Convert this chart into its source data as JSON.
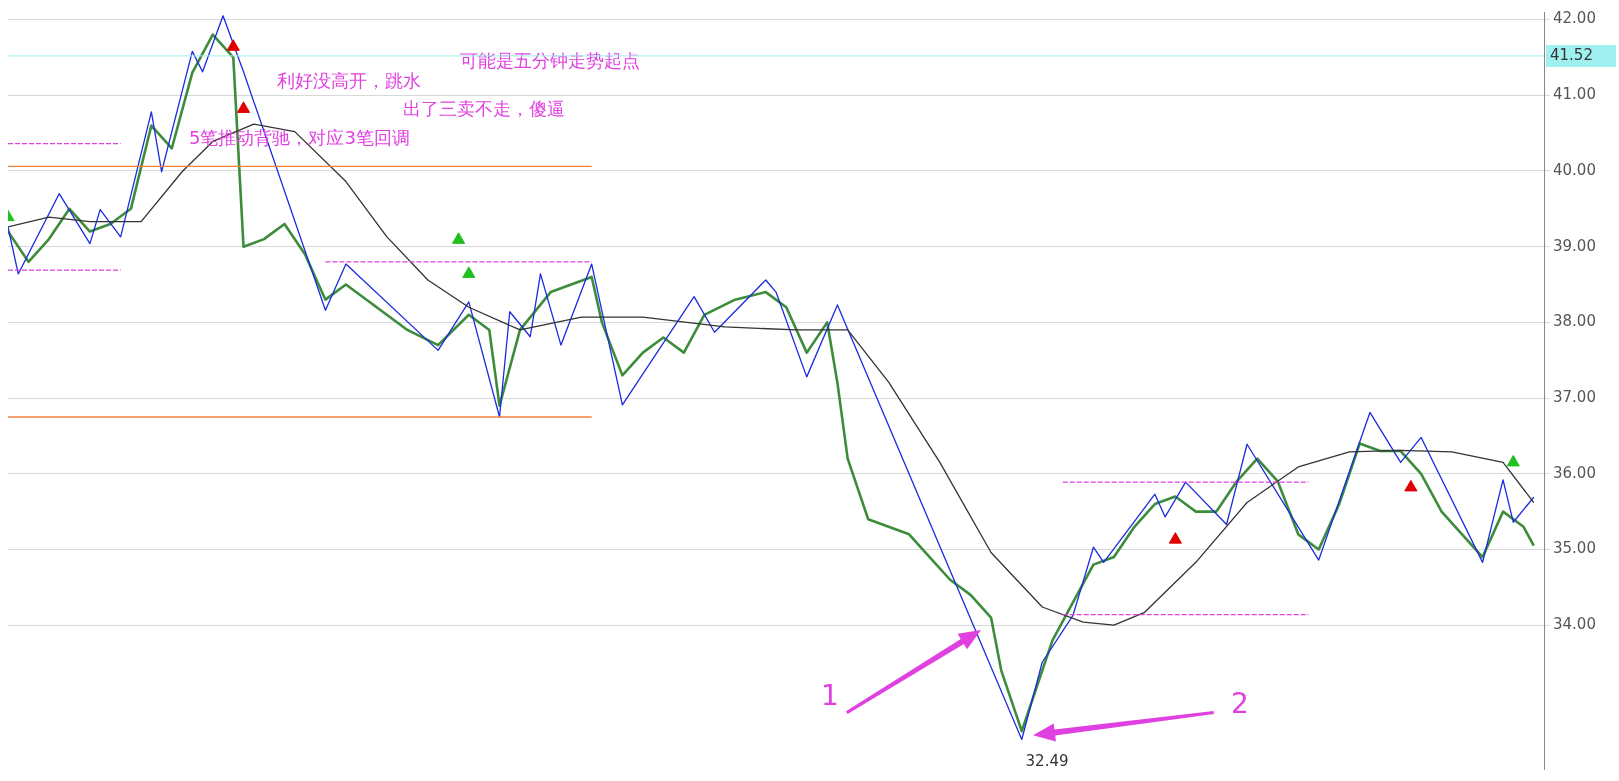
{
  "chart_data": {
    "type": "line",
    "categories": [
      null,
      null,
      null,
      null,
      null,
      null,
      null,
      null,
      null,
      null,
      null,
      null,
      null,
      null,
      null,
      null,
      null,
      null,
      null,
      null,
      null,
      null,
      null,
      null,
      null,
      null,
      null,
      null,
      null,
      null,
      null,
      null,
      null,
      null,
      null,
      null,
      null,
      null,
      null,
      null,
      null,
      null,
      null,
      null,
      null,
      null,
      null,
      null,
      null,
      null,
      null,
      null,
      null,
      null,
      null,
      null,
      null,
      null,
      null,
      null,
      null,
      null,
      null,
      null,
      null,
      null,
      null,
      null,
      null,
      null,
      null,
      null,
      null,
      null,
      null,
      null,
      null,
      null,
      null,
      null,
      null,
      null,
      null,
      null,
      null,
      null,
      null,
      null,
      null,
      null,
      null,
      null,
      null,
      null,
      null,
      null,
      null,
      null,
      null,
      null,
      null,
      null,
      null,
      null,
      null,
      null,
      null,
      null,
      null,
      null,
      null,
      null,
      null,
      null,
      null,
      null,
      null,
      null,
      null,
      null,
      null,
      null,
      null,
      null,
      null,
      null,
      null,
      null,
      null,
      null,
      null,
      null,
      null,
      null,
      null,
      null,
      null,
      null,
      null,
      null,
      null,
      null,
      null,
      null,
      null,
      null,
      null,
      null,
      null,
      null
    ],
    "ylim": [
      32.1,
      42.1
    ],
    "yticks": [
      {
        "value": 34,
        "label": "34.00"
      },
      {
        "value": 35,
        "label": "35.00"
      },
      {
        "value": 36,
        "label": "36.00"
      },
      {
        "value": 37,
        "label": "37.00"
      },
      {
        "value": 38,
        "label": "38.00"
      },
      {
        "value": 39,
        "label": "39.00"
      },
      {
        "value": 40,
        "label": "40.00"
      },
      {
        "value": 41,
        "label": "41.00"
      },
      {
        "value": 42,
        "label": "42.00"
      }
    ],
    "grid": "y",
    "legend": false,
    "tick_labels": "y",
    "series": [
      {
        "color": "#3c8c3c",
        "values": [
          39.2,
          null,
          38.8,
          null,
          39.1,
          null,
          39.5,
          null,
          39.2,
          null,
          39.3,
          null,
          39.5,
          null,
          40.6,
          null,
          40.3,
          null,
          41.3,
          null,
          41.8,
          null,
          41.5,
          39.0,
          null,
          39.1,
          null,
          39.3,
          null,
          38.9,
          null,
          38.3,
          null,
          38.5,
          null,
          null,
          38.2,
          null,
          null,
          37.9,
          null,
          null,
          37.7,
          null,
          null,
          38.1,
          null,
          37.9,
          36.9,
          null,
          37.9,
          null,
          null,
          38.4,
          null,
          38.5,
          null,
          38.6,
          38.0,
          null,
          37.3,
          null,
          37.6,
          null,
          37.8,
          null,
          37.6,
          null,
          38.1,
          null,
          null,
          38.3,
          null,
          null,
          38.4,
          null,
          38.2,
          null,
          37.6,
          null,
          38.0,
          37.2,
          36.2,
          null,
          35.4,
          null,
          35.3,
          null,
          35.2,
          null,
          34.9,
          null,
          34.6,
          null,
          34.4,
          null,
          34.1,
          33.4,
          null,
          32.6,
          33.0,
          null,
          33.8,
          null,
          34.3,
          null,
          34.8,
          null,
          34.9,
          null,
          35.3,
          null,
          35.6,
          null,
          35.7,
          null,
          35.5,
          null,
          35.5,
          null,
          35.9,
          null,
          36.2,
          null,
          35.9,
          null,
          35.2,
          null,
          35.0,
          null,
          35.6,
          null,
          36.4,
          null,
          36.3,
          null,
          36.3,
          null,
          36.0,
          null,
          35.5,
          null,
          35.2,
          null,
          34.9,
          null,
          35.5,
          null,
          35.3,
          35.05
        ]
      },
      {
        "color": "#1a2be0",
        "values": [
          39.26,
          38.64,
          null,
          null,
          null,
          39.7,
          null,
          null,
          39.04,
          39.49,
          null,
          39.13,
          null,
          null,
          40.78,
          39.99,
          null,
          null,
          41.58,
          41.31,
          null,
          42.05,
          null,
          41.31,
          null,
          null,
          null,
          null,
          null,
          null,
          null,
          38.16,
          null,
          38.77,
          null,
          null,
          null,
          null,
          null,
          null,
          null,
          null,
          37.63,
          null,
          null,
          38.27,
          null,
          null,
          36.75,
          38.14,
          null,
          37.81,
          38.64,
          null,
          37.7,
          null,
          null,
          38.77,
          null,
          null,
          36.91,
          null,
          null,
          null,
          null,
          null,
          null,
          38.34,
          null,
          37.87,
          null,
          null,
          null,
          null,
          38.56,
          38.4,
          null,
          null,
          37.28,
          null,
          null,
          38.23,
          null,
          null,
          null,
          null,
          null,
          null,
          null,
          null,
          null,
          null,
          null,
          null,
          null,
          null,
          null,
          null,
          null,
          32.49,
          null,
          33.51,
          null,
          null,
          34.13,
          null,
          35.03,
          34.83,
          null,
          null,
          null,
          null,
          35.73,
          35.43,
          null,
          35.89,
          null,
          null,
          null,
          35.33,
          null,
          36.39,
          null,
          null,
          null,
          null,
          null,
          null,
          34.86,
          null,
          null,
          null,
          null,
          36.81,
          null,
          null,
          36.15,
          null,
          36.48,
          null,
          null,
          null,
          null,
          null,
          34.83,
          null,
          35.92,
          35.36,
          null,
          35.69
        ]
      },
      {
        "color": "#333333",
        "values": [
          39.26,
          null,
          null,
          null,
          39.39,
          null,
          null,
          null,
          39.33,
          null,
          null,
          null,
          null,
          39.33,
          null,
          null,
          null,
          39.99,
          null,
          null,
          40.39,
          null,
          null,
          null,
          40.62,
          null,
          null,
          null,
          40.52,
          null,
          null,
          null,
          null,
          39.86,
          null,
          null,
          null,
          39.13,
          null,
          null,
          null,
          38.56,
          null,
          null,
          null,
          38.2,
          null,
          null,
          null,
          null,
          37.9,
          null,
          null,
          null,
          null,
          null,
          38.07,
          null,
          null,
          null,
          null,
          null,
          38.07,
          null,
          null,
          null,
          null,
          null,
          null,
          null,
          37.94,
          null,
          null,
          null,
          null,
          null,
          null,
          37.9,
          null,
          null,
          null,
          null,
          37.9,
          null,
          null,
          null,
          37.21,
          null,
          null,
          null,
          null,
          36.15,
          null,
          null,
          null,
          null,
          34.96,
          null,
          null,
          null,
          null,
          34.24,
          null,
          null,
          null,
          34.04,
          null,
          null,
          34.0,
          null,
          null,
          34.17,
          null,
          null,
          null,
          null,
          34.83,
          null,
          null,
          null,
          null,
          35.62,
          null,
          null,
          null,
          null,
          36.09,
          null,
          null,
          null,
          null,
          36.29,
          null,
          null,
          null,
          null,
          36.31,
          null,
          null,
          null,
          null,
          36.29,
          null,
          null,
          null,
          null,
          36.15,
          null,
          null,
          35.62
        ]
      },
      {
        "color": "#f08040",
        "line_style": "solid",
        "values": [
          40.06,
          null,
          null,
          null,
          null,
          null,
          null,
          null,
          null,
          null,
          null,
          null,
          null,
          null,
          null,
          null,
          null,
          null,
          null,
          null,
          null,
          null,
          null,
          null,
          null,
          null,
          null,
          null,
          null,
          null,
          null,
          null,
          null,
          null,
          null,
          null,
          null,
          null,
          null,
          null,
          null,
          null,
          null,
          null,
          null,
          null,
          null,
          null,
          null,
          null,
          null,
          null,
          null,
          null,
          null,
          null,
          null,
          40.06,
          null,
          null,
          null,
          null,
          null,
          null,
          null,
          null,
          null,
          null,
          null,
          null,
          null,
          null,
          null,
          null,
          null,
          null,
          null,
          null,
          null,
          null,
          null,
          null,
          null,
          null,
          null,
          null,
          null,
          null,
          null,
          null,
          null,
          null,
          null,
          null,
          null,
          null,
          null,
          null,
          null,
          null,
          null,
          null,
          null,
          null,
          null,
          null,
          null,
          null,
          null,
          null,
          null,
          null,
          null,
          null,
          null,
          null,
          null,
          null,
          null,
          null,
          null,
          null,
          null,
          null,
          null,
          null,
          null,
          null,
          null,
          null,
          null,
          null,
          null,
          null,
          null,
          null,
          null,
          null,
          null,
          null,
          null,
          null,
          null,
          null,
          null,
          null,
          null,
          null,
          null,
          null
        ]
      },
      {
        "color": "#f08040",
        "line_style": "solid",
        "values": [
          36.75,
          null,
          null,
          null,
          null,
          null,
          null,
          null,
          null,
          null,
          null,
          null,
          null,
          null,
          null,
          null,
          null,
          null,
          null,
          null,
          null,
          null,
          null,
          null,
          null,
          null,
          null,
          null,
          null,
          null,
          null,
          null,
          null,
          null,
          null,
          null,
          null,
          null,
          null,
          null,
          null,
          null,
          null,
          null,
          null,
          null,
          null,
          null,
          null,
          null,
          null,
          null,
          null,
          null,
          null,
          null,
          null,
          36.75,
          null,
          null,
          null,
          null,
          null,
          null,
          null,
          null,
          null,
          null,
          null,
          null,
          null,
          null,
          null,
          null,
          null,
          null,
          null,
          null,
          null,
          null,
          null,
          null,
          null,
          null,
          null,
          null,
          null,
          null,
          null,
          null,
          null,
          null,
          null,
          null,
          null,
          null,
          null,
          null,
          null,
          null,
          null,
          null,
          null,
          null,
          null,
          null,
          null,
          null,
          null,
          null,
          null,
          null,
          null,
          null,
          null,
          null,
          null,
          null,
          null,
          null,
          null,
          null,
          null,
          null,
          null,
          null,
          null,
          null,
          null,
          null,
          null,
          null,
          null,
          null,
          null,
          null,
          null,
          null,
          null,
          null,
          null,
          null,
          null,
          null,
          null,
          null,
          null,
          null,
          null,
          null
        ]
      },
      {
        "color": "#e040e0",
        "line_style": "dashed",
        "values": [
          40.36,
          null,
          null,
          null,
          null,
          null,
          null,
          null,
          null,
          null,
          null,
          40.36,
          null,
          null,
          null,
          null,
          null,
          null,
          null,
          null,
          null,
          null,
          null,
          null,
          null,
          null,
          null,
          null,
          null,
          null,
          null,
          null,
          null,
          null,
          null,
          null,
          null,
          null,
          null,
          null,
          null,
          null,
          null,
          null,
          null,
          null,
          null,
          null,
          null,
          null,
          null,
          null,
          null,
          null,
          null,
          null,
          null,
          null,
          null,
          null,
          null,
          null,
          null,
          null,
          null,
          null,
          null,
          null,
          null,
          null,
          null,
          null,
          null,
          null,
          null,
          null,
          null,
          null,
          null,
          null,
          null,
          null,
          null,
          null,
          null,
          null,
          null,
          null,
          null,
          null,
          null,
          null,
          null,
          null,
          null,
          null,
          null,
          null,
          null,
          null,
          null,
          null,
          null,
          null,
          null,
          null,
          null,
          null,
          null,
          null,
          null,
          null,
          null,
          null,
          null,
          null,
          null,
          null,
          null,
          null,
          null,
          null,
          null,
          null,
          null,
          null,
          null,
          null,
          null,
          null,
          null,
          null,
          null,
          null,
          null,
          null,
          null,
          null,
          null,
          null,
          null,
          null,
          null,
          null,
          null,
          null,
          null,
          null,
          null,
          null
        ]
      },
      {
        "color": "#e040e0",
        "line_style": "dashed",
        "values": [
          38.69,
          null,
          null,
          null,
          null,
          null,
          null,
          null,
          null,
          null,
          null,
          38.69,
          null,
          null,
          null,
          null,
          null,
          null,
          null,
          null,
          null,
          null,
          null,
          null,
          null,
          null,
          null,
          null,
          null,
          null,
          null,
          null,
          null,
          null,
          null,
          null,
          null,
          null,
          null,
          null,
          null,
          null,
          null,
          null,
          null,
          null,
          null,
          null,
          null,
          null,
          null,
          null,
          null,
          null,
          null,
          null,
          null,
          null,
          null,
          null,
          null,
          null,
          null,
          null,
          null,
          null,
          null,
          null,
          null,
          null,
          null,
          null,
          null,
          null,
          null,
          null,
          null,
          null,
          null,
          null,
          null,
          null,
          null,
          null,
          null,
          null,
          null,
          null,
          null,
          null,
          null,
          null,
          null,
          null,
          null,
          null,
          null,
          null,
          null,
          null,
          null,
          null,
          null,
          null,
          null,
          null,
          null,
          null,
          null,
          null,
          null,
          null,
          null,
          null,
          null,
          null,
          null,
          null,
          null,
          null,
          null,
          null,
          null,
          null,
          null,
          null,
          null,
          null,
          null,
          null,
          null,
          null,
          null,
          null,
          null,
          null,
          null,
          null,
          null,
          null,
          null,
          null,
          null,
          null,
          null,
          null,
          null,
          null,
          null,
          null
        ]
      },
      {
        "color": "#e040e0",
        "line_style": "dashed",
        "values": [
          null,
          null,
          null,
          null,
          null,
          null,
          null,
          null,
          null,
          null,
          null,
          null,
          null,
          null,
          null,
          null,
          null,
          null,
          null,
          null,
          null,
          null,
          null,
          null,
          null,
          null,
          null,
          null,
          null,
          null,
          null,
          38.8,
          null,
          null,
          null,
          null,
          null,
          null,
          null,
          null,
          null,
          null,
          null,
          null,
          null,
          null,
          null,
          null,
          null,
          null,
          null,
          null,
          null,
          null,
          null,
          null,
          null,
          38.8,
          null,
          null,
          null,
          null,
          null,
          null,
          null,
          null,
          null,
          null,
          null,
          null,
          null,
          null,
          null,
          null,
          null,
          null,
          null,
          null,
          null,
          null,
          null,
          null,
          null,
          null,
          null,
          null,
          null,
          null,
          null,
          null,
          null,
          null,
          null,
          null,
          null,
          null,
          null,
          null,
          null,
          null,
          null,
          null,
          null,
          null,
          null,
          null,
          null,
          null,
          null,
          null,
          null,
          null,
          null,
          null,
          null,
          null,
          null,
          null,
          null,
          null,
          null,
          null,
          null,
          null,
          null,
          null,
          null,
          null,
          null,
          null,
          null,
          null,
          null,
          null,
          null,
          null,
          null,
          null,
          null,
          null,
          null,
          null,
          null,
          null,
          null,
          null,
          null,
          null,
          null,
          null
        ]
      },
      {
        "color": "#e040e0",
        "line_style": "dashed",
        "values": [
          null,
          null,
          null,
          null,
          null,
          null,
          null,
          null,
          null,
          null,
          null,
          null,
          null,
          null,
          null,
          null,
          null,
          null,
          null,
          null,
          null,
          null,
          null,
          null,
          null,
          null,
          null,
          null,
          null,
          null,
          null,
          null,
          null,
          null,
          null,
          null,
          null,
          null,
          null,
          null,
          null,
          null,
          null,
          null,
          null,
          null,
          null,
          null,
          null,
          null,
          null,
          null,
          null,
          null,
          null,
          null,
          null,
          null,
          null,
          null,
          null,
          null,
          null,
          null,
          null,
          null,
          null,
          null,
          null,
          null,
          null,
          null,
          null,
          null,
          null,
          null,
          null,
          null,
          null,
          null,
          null,
          null,
          null,
          null,
          null,
          null,
          null,
          null,
          null,
          null,
          null,
          null,
          null,
          null,
          null,
          null,
          null,
          null,
          null,
          null,
          null,
          null,
          null,
          35.89,
          null,
          null,
          null,
          null,
          null,
          null,
          null,
          null,
          null,
          null,
          null,
          null,
          null,
          null,
          null,
          null,
          null,
          null,
          null,
          null,
          null,
          null,
          null,
          35.89,
          null,
          null,
          null,
          null,
          null,
          null,
          null,
          null,
          null,
          null,
          null,
          null,
          null,
          null,
          null,
          null,
          null,
          null,
          null,
          null,
          null,
          null
        ]
      },
      {
        "color": "#e040e0",
        "line_style": "dashed",
        "values": [
          null,
          null,
          null,
          null,
          null,
          null,
          null,
          null,
          null,
          null,
          null,
          null,
          null,
          null,
          null,
          null,
          null,
          null,
          null,
          null,
          null,
          null,
          null,
          null,
          null,
          null,
          null,
          null,
          null,
          null,
          null,
          null,
          null,
          null,
          null,
          null,
          null,
          null,
          null,
          null,
          null,
          null,
          null,
          null,
          null,
          null,
          null,
          null,
          null,
          null,
          null,
          null,
          null,
          null,
          null,
          null,
          null,
          null,
          null,
          null,
          null,
          null,
          null,
          null,
          null,
          null,
          null,
          null,
          null,
          null,
          null,
          null,
          null,
          null,
          null,
          null,
          null,
          null,
          null,
          null,
          null,
          null,
          null,
          null,
          null,
          null,
          null,
          null,
          null,
          null,
          null,
          null,
          null,
          null,
          null,
          null,
          null,
          null,
          null,
          null,
          null,
          null,
          null,
          34.14,
          null,
          null,
          null,
          null,
          null,
          null,
          null,
          null,
          null,
          null,
          null,
          null,
          null,
          null,
          null,
          null,
          null,
          null,
          null,
          null,
          null,
          null,
          null,
          34.14,
          null,
          null,
          null,
          null,
          null,
          null,
          null,
          null,
          null,
          null,
          null,
          null,
          null,
          null,
          null,
          null,
          null,
          null,
          null,
          null,
          null,
          null
        ]
      },
      {
        "type": "scatter",
        "marker": "triangle",
        "color": "#e00000",
        "values": [
          null,
          null,
          null,
          null,
          null,
          null,
          null,
          null,
          null,
          null,
          null,
          null,
          null,
          null,
          null,
          null,
          null,
          null,
          null,
          null,
          null,
          null,
          41.64,
          40.82,
          null,
          null,
          null,
          null,
          null,
          null,
          null,
          null,
          null,
          null,
          null,
          null,
          null,
          null,
          null,
          null,
          null,
          null,
          null,
          null,
          null,
          null,
          null,
          null,
          null,
          null,
          null,
          null,
          null,
          null,
          null,
          null,
          null,
          null,
          null,
          null,
          null,
          null,
          null,
          null,
          null,
          null,
          null,
          null,
          null,
          null,
          null,
          null,
          null,
          null,
          null,
          null,
          null,
          null,
          null,
          null,
          null,
          null,
          null,
          null,
          null,
          null,
          null,
          null,
          null,
          null,
          null,
          null,
          null,
          null,
          null,
          null,
          null,
          null,
          null,
          null,
          null,
          null,
          null,
          null,
          null,
          null,
          null,
          null,
          null,
          null,
          null,
          null,
          null,
          null,
          35.13,
          null,
          null,
          null,
          null,
          null,
          null,
          null,
          null,
          null,
          null,
          null,
          null,
          null,
          null,
          null,
          null,
          null,
          null,
          null,
          null,
          null,
          null,
          35.82,
          null,
          null,
          null,
          null,
          null,
          null,
          null,
          null,
          null,
          null,
          null,
          null
        ]
      },
      {
        "type": "scatter",
        "marker": "triangle",
        "color": "#20c020",
        "values": [
          39.39,
          null,
          null,
          null,
          null,
          null,
          null,
          null,
          null,
          null,
          null,
          null,
          null,
          null,
          null,
          null,
          null,
          null,
          null,
          null,
          null,
          null,
          null,
          null,
          null,
          null,
          null,
          null,
          null,
          null,
          null,
          null,
          null,
          null,
          null,
          null,
          null,
          null,
          null,
          null,
          null,
          null,
          null,
          null,
          39.09,
          38.64,
          null,
          null,
          null,
          null,
          null,
          null,
          null,
          null,
          null,
          null,
          null,
          null,
          null,
          null,
          null,
          null,
          null,
          null,
          null,
          null,
          null,
          null,
          null,
          null,
          null,
          null,
          null,
          null,
          null,
          null,
          null,
          null,
          null,
          null,
          null,
          null,
          null,
          null,
          null,
          null,
          null,
          null,
          null,
          null,
          null,
          null,
          null,
          null,
          null,
          null,
          null,
          null,
          null,
          null,
          null,
          null,
          null,
          null,
          null,
          null,
          null,
          null,
          null,
          null,
          null,
          null,
          null,
          null,
          null,
          null,
          null,
          null,
          null,
          null,
          null,
          null,
          null,
          null,
          null,
          null,
          null,
          null,
          null,
          null,
          null,
          null,
          null,
          null,
          null,
          null,
          null,
          null,
          null,
          null,
          null,
          null,
          null,
          null,
          null,
          null,
          null,
          36.15,
          null,
          null
        ]
      }
    ],
    "ref_lines": [
      {
        "axis": "y",
        "value": 41.52,
        "label": "41.52",
        "color": "#a0f0f0"
      }
    ],
    "annotations": [
      "利好没高开，跳水",
      "可能是五分钟走势起点",
      "出了三卖不走，傻逼",
      "5笔推动背驰，对应3笔回调",
      "1",
      "2",
      "32.49"
    ]
  }
}
